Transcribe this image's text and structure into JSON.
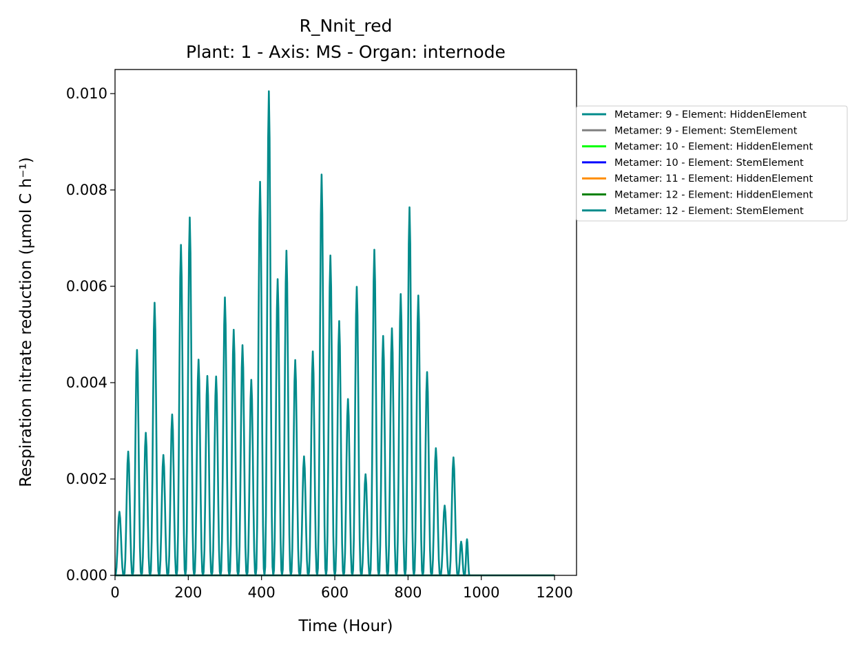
{
  "chart_data": {
    "type": "line",
    "title": "R_Nnit_red",
    "subtitle": "Plant: 1 - Axis: MS - Organ: internode",
    "xlabel": "Time (Hour)",
    "ylabel": "Respiration nitrate reduction (µmol C h⁻¹)",
    "xlim": [
      0,
      1260
    ],
    "ylim": [
      0,
      0.0105
    ],
    "xticks": [
      0,
      200,
      400,
      600,
      800,
      1000,
      1200
    ],
    "yticks": [
      0.0,
      0.002,
      0.004,
      0.006,
      0.008,
      0.01
    ],
    "xtick_labels": [
      "0",
      "200",
      "400",
      "600",
      "800",
      "1000",
      "1200"
    ],
    "ytick_labels": [
      "0.000",
      "0.002",
      "0.004",
      "0.006",
      "0.008",
      "0.010"
    ],
    "grid": false,
    "legend_position": "outside right, top",
    "series": [
      {
        "name": "Metamer: 9 - Element: HiddenElement",
        "color": "#008b8b",
        "peaks": [
          [
            12,
            0.00132
          ],
          [
            36,
            0.00257
          ],
          [
            60,
            0.00468
          ],
          [
            84,
            0.00296
          ],
          [
            108,
            0.00566
          ],
          [
            132,
            0.0025
          ],
          [
            156,
            0.00334
          ],
          [
            180,
            0.00686
          ],
          [
            204,
            0.00743
          ],
          [
            228,
            0.00448
          ],
          [
            252,
            0.00414
          ],
          [
            276,
            0.00413
          ],
          [
            300,
            0.00577
          ],
          [
            324,
            0.0051
          ],
          [
            348,
            0.00478
          ],
          [
            372,
            0.00406
          ],
          [
            396,
            0.00817
          ],
          [
            420,
            0.01005
          ],
          [
            444,
            0.00615
          ],
          [
            468,
            0.00674
          ],
          [
            492,
            0.00447
          ],
          [
            516,
            0.00247
          ],
          [
            540,
            0.00465
          ],
          [
            564,
            0.00832
          ],
          [
            588,
            0.00664
          ],
          [
            612,
            0.00528
          ],
          [
            636,
            0.00366
          ],
          [
            660,
            0.00599
          ],
          [
            684,
            0.0021
          ],
          [
            708,
            0.00676
          ],
          [
            732,
            0.00497
          ],
          [
            756,
            0.00513
          ],
          [
            780,
            0.00584
          ],
          [
            804,
            0.00764
          ],
          [
            828,
            0.00581
          ],
          [
            852,
            0.00422
          ],
          [
            876,
            0.00264
          ],
          [
            900,
            0.00145
          ],
          [
            924,
            0.00245
          ],
          [
            948,
            0.0007
          ],
          [
            960,
            0.00075
          ]
        ]
      },
      {
        "name": "Metamer: 9 - Element: StemElement",
        "color": "#808080",
        "values": [
          [
            0,
            0
          ],
          [
            1200,
            0
          ]
        ]
      },
      {
        "name": "Metamer: 10 - Element: HiddenElement",
        "color": "#00ff00",
        "values": [
          [
            0,
            0
          ],
          [
            1200,
            0
          ]
        ]
      },
      {
        "name": "Metamer: 10 - Element: StemElement",
        "color": "#0000ff",
        "values": [
          [
            0,
            0
          ],
          [
            1200,
            0
          ]
        ]
      },
      {
        "name": "Metamer: 11 - Element: HiddenElement",
        "color": "#ff8c00",
        "values": [
          [
            0,
            0
          ],
          [
            1200,
            0
          ]
        ]
      },
      {
        "name": "Metamer: 12 - Element: HiddenElement",
        "color": "#008000",
        "values": [
          [
            0,
            0
          ],
          [
            1200,
            0
          ]
        ]
      },
      {
        "name": "Metamer: 12 - Element: StemElement",
        "color": "#008b8b",
        "values": [
          [
            0,
            0
          ],
          [
            1200,
            0
          ]
        ]
      }
    ]
  }
}
